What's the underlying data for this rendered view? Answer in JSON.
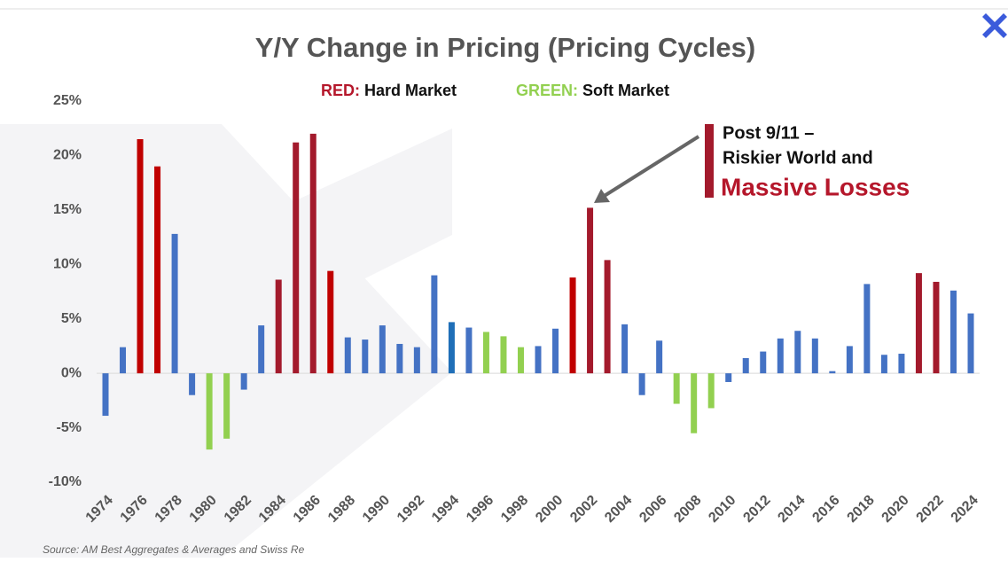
{
  "chart_data": {
    "type": "bar",
    "title": "Y/Y Change in Pricing (Pricing Cycles)",
    "legend": [
      {
        "key": "RED:",
        "label": "Hard Market",
        "color": "#b5172b"
      },
      {
        "key": "GREEN:",
        "label": "Soft Market",
        "color": "#92d050"
      }
    ],
    "annotations": [
      "Post 9/11 –",
      "Riskier World and",
      "Massive Losses"
    ],
    "source": "Source: AM Best Aggregates & Averages and Swiss Re",
    "categories": [
      "1974",
      null,
      "1976",
      null,
      "1978",
      null,
      "1980",
      null,
      "1982",
      null,
      "1984",
      null,
      "1986",
      null,
      "1988",
      null,
      "1990",
      null,
      "1992",
      null,
      "1994",
      null,
      "1996",
      null,
      "1998",
      null,
      "2000",
      null,
      "2002",
      null,
      "2004",
      null,
      "2006",
      null,
      "2008",
      null,
      "2010",
      null,
      "2012",
      null,
      "2014",
      null,
      "2016",
      null,
      "2018",
      null,
      "2020",
      null,
      "2022",
      null,
      "2024"
    ],
    "values": [
      -3.9,
      2.4,
      21.5,
      19.0,
      12.8,
      -2.0,
      -7.0,
      -6.0,
      -1.5,
      4.4,
      8.6,
      21.2,
      22.0,
      9.4,
      3.3,
      3.1,
      4.4,
      2.7,
      2.4,
      9.0,
      4.7,
      4.2,
      3.8,
      3.4,
      2.4,
      2.5,
      4.1,
      8.8,
      15.2,
      10.4,
      4.5,
      -2.0,
      3.0,
      -2.8,
      -5.5,
      -3.2,
      -0.8,
      1.4,
      2.0,
      3.2,
      3.9,
      3.2,
      0.2,
      2.5,
      8.2,
      1.7,
      1.8,
      9.2,
      8.4,
      7.6,
      5.5
    ],
    "colors": [
      "#4472c4",
      "#4472c4",
      "#c00000",
      "#c00000",
      "#4472c4",
      "#4472c4",
      "#92d050",
      "#92d050",
      "#4472c4",
      "#4472c4",
      "#a31a2c",
      "#a31a2c",
      "#a31a2c",
      "#c00000",
      "#4472c4",
      "#4472c4",
      "#4472c4",
      "#4472c4",
      "#4472c4",
      "#4472c4",
      "#1f6fb8",
      "#4472c4",
      "#92d050",
      "#92d050",
      "#92d050",
      "#4472c4",
      "#4472c4",
      "#c00000",
      "#a31a2c",
      "#a31a2c",
      "#4472c4",
      "#4472c4",
      "#4472c4",
      "#92d050",
      "#92d050",
      "#92d050",
      "#4472c4",
      "#4472c4",
      "#4472c4",
      "#4472c4",
      "#4472c4",
      "#4472c4",
      "#4472c4",
      "#4472c4",
      "#4472c4",
      "#4472c4",
      "#4472c4",
      "#a31a2c",
      "#a31a2c",
      "#4472c4",
      "#4472c4"
    ],
    "ylim": [
      -10,
      25
    ],
    "yticks": [
      {
        "value": -10,
        "label": "-10%"
      },
      {
        "value": -5,
        "label": "-5%"
      },
      {
        "value": 0,
        "label": "0%"
      },
      {
        "value": 5,
        "label": "5%"
      },
      {
        "value": 10,
        "label": "10%"
      },
      {
        "value": 15,
        "label": "15%"
      },
      {
        "value": 20,
        "label": "20%"
      },
      {
        "value": 25,
        "label": "25%"
      }
    ],
    "grid": false
  }
}
